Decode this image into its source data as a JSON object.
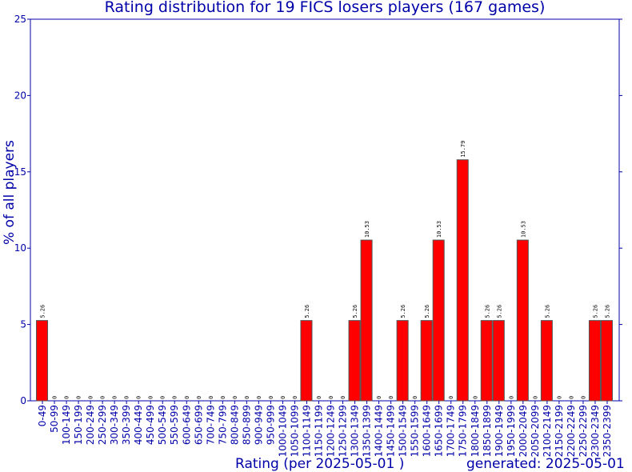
{
  "chart_data": {
    "type": "bar",
    "title": "Rating distribution for 19 FICS losers players (167 games)",
    "xlabel": "Rating (per 2025-05-01 )",
    "ylabel": "% of all players",
    "footer": "generated: 2025-05-01",
    "ylim": [
      0,
      25
    ],
    "yticks": [
      0,
      5,
      10,
      15,
      20,
      25
    ],
    "categories": [
      "0-49",
      "50-99",
      "100-149",
      "150-199",
      "200-249",
      "250-299",
      "300-349",
      "350-399",
      "400-449",
      "450-499",
      "500-549",
      "550-599",
      "600-649",
      "650-699",
      "700-749",
      "750-799",
      "800-849",
      "850-899",
      "900-949",
      "950-999",
      "1000-1049",
      "1050-1099",
      "1100-1149",
      "1150-1199",
      "1200-1249",
      "1250-1299",
      "1300-1349",
      "1350-1399",
      "1400-1449",
      "1450-1499",
      "1500-1549",
      "1550-1599",
      "1600-1649",
      "1650-1699",
      "1700-1749",
      "1750-1799",
      "1800-1849",
      "1850-1899",
      "1900-1949",
      "1950-1999",
      "2000-2049",
      "2050-2099",
      "2100-2149",
      "2150-2199",
      "2200-2249",
      "2250-2299",
      "2300-2349",
      "2350-2399"
    ],
    "values": [
      5.26,
      0,
      0,
      0,
      0,
      0,
      0,
      0,
      0,
      0,
      0,
      0,
      0,
      0,
      0,
      0,
      0,
      0,
      0,
      0,
      0,
      0,
      5.26,
      0,
      0,
      0,
      5.26,
      10.53,
      0,
      0,
      5.26,
      0,
      5.26,
      10.53,
      0,
      15.79,
      0,
      5.26,
      5.26,
      0,
      10.53,
      0,
      5.26,
      0,
      0,
      0,
      5.26,
      5.26
    ],
    "data_labels": [
      "5.26",
      "0",
      "0",
      "0",
      "0",
      "0",
      "0",
      "0",
      "0",
      "0",
      "0",
      "0",
      "0",
      "0",
      "0",
      "0",
      "0",
      "0",
      "0",
      "0",
      "0",
      "0",
      "5.26",
      "0",
      "0",
      "0",
      "5.26",
      "10.53",
      "0",
      "0",
      "5.26",
      "0",
      "5.26",
      "10.53",
      "0",
      "15.79",
      "0",
      "5.26",
      "5.26",
      "0",
      "10.53",
      "0",
      "5.26",
      "0",
      "0",
      "0",
      "5.26",
      "5.26"
    ],
    "bar_color": "#ff0000",
    "text_color": "#0000a8",
    "grid": false
  }
}
